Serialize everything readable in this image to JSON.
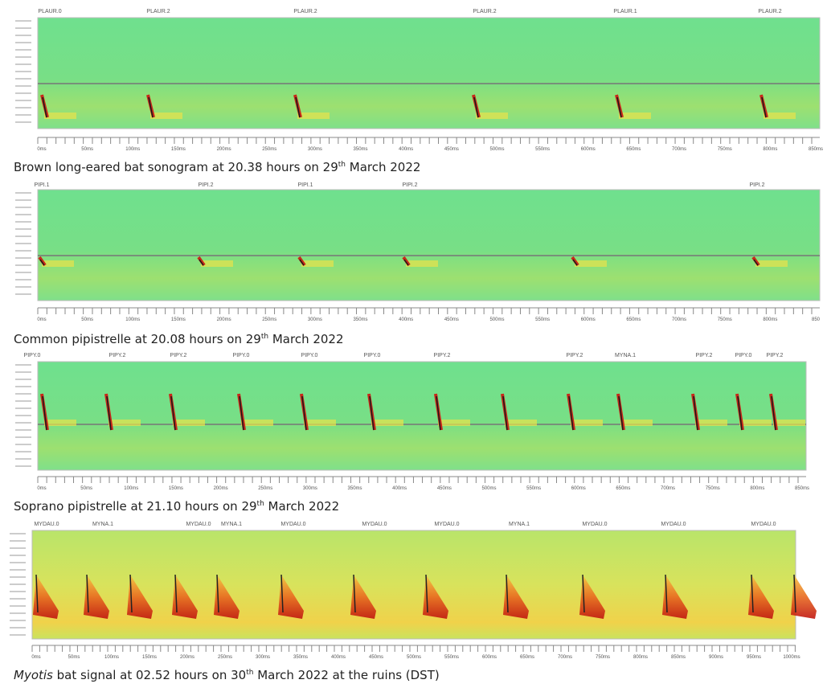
{
  "panels": [
    {
      "call_labels": [
        "PLAUR.0",
        "PLAUR.2",
        "PLAUR.2",
        "PLAUR.2",
        "PLAUR.1",
        "PLAUR.2"
      ],
      "x_ticks": [
        "0ms",
        "50ms",
        "100ms",
        "150ms",
        "200ms",
        "250ms",
        "300ms",
        "350ms",
        "400ms",
        "450ms",
        "500ms",
        "550ms",
        "600ms",
        "650ms",
        "700ms",
        "750ms",
        "800ms",
        "850ms"
      ],
      "caption": {
        "main": "Brown long-eared bat sonogram at 20.38 hours on 29",
        "sup": "th",
        "rest": " March 2022"
      }
    },
    {
      "call_labels": [
        "PIPI.1",
        "PIPI.2",
        "PIPI.1",
        "PIPI.2",
        "PIPI.2"
      ],
      "x_ticks": [
        "0ms",
        "50ms",
        "100ms",
        "150ms",
        "200ms",
        "250ms",
        "300ms",
        "350ms",
        "400ms",
        "450ms",
        "500ms",
        "550ms",
        "600ms",
        "650ms",
        "700ms",
        "750ms",
        "800ms",
        "850"
      ],
      "caption": {
        "main": "Common pipistrelle at 20.08 hours on 29",
        "sup": "th",
        "rest": " March 2022"
      }
    },
    {
      "call_labels": [
        "PIPY.0",
        "PIPY.2",
        "PIPY.2",
        "PIPY.0",
        "PIPY.0",
        "PIPY.0",
        "PIPY.2",
        "PIPY.2",
        "MYNA.1",
        "PIPY.2",
        "PIPY.0",
        "PIPY.2"
      ],
      "x_ticks": [
        "0ms",
        "50ms",
        "100ms",
        "150ms",
        "200ms",
        "250ms",
        "300ms",
        "350ms",
        "400ms",
        "450ms",
        "500ms",
        "550ms",
        "600ms",
        "650ms",
        "700ms",
        "750ms",
        "800ms",
        "850ms"
      ],
      "caption": {
        "main": "Soprano pipistrelle at 21.10 hours on 29",
        "sup": "th",
        "rest": " March 2022"
      }
    },
    {
      "call_labels": [
        "MYDAU.0",
        "MYNA.1",
        "MYDAU.0",
        "MYNA.1",
        "MYDAU.0",
        "MYDAU.0",
        "MYDAU.0",
        "MYNA.1",
        "MYDAU.0",
        "MYDAU.0",
        "MYDAU.0"
      ],
      "x_ticks": [
        "0ms",
        "50ms",
        "100ms",
        "150ms",
        "200ms",
        "250ms",
        "300ms",
        "350ms",
        "400ms",
        "450ms",
        "500ms",
        "550ms",
        "600ms",
        "650ms",
        "700ms",
        "750ms",
        "800ms",
        "850ms",
        "900ms",
        "950ms",
        "1000ms"
      ],
      "caption": {
        "italic": "Myotis",
        "main": " bat signal at 02.52 hours on 30",
        "sup": "th",
        "rest": " March 2022 at the ruins (DST)"
      }
    }
  ]
}
